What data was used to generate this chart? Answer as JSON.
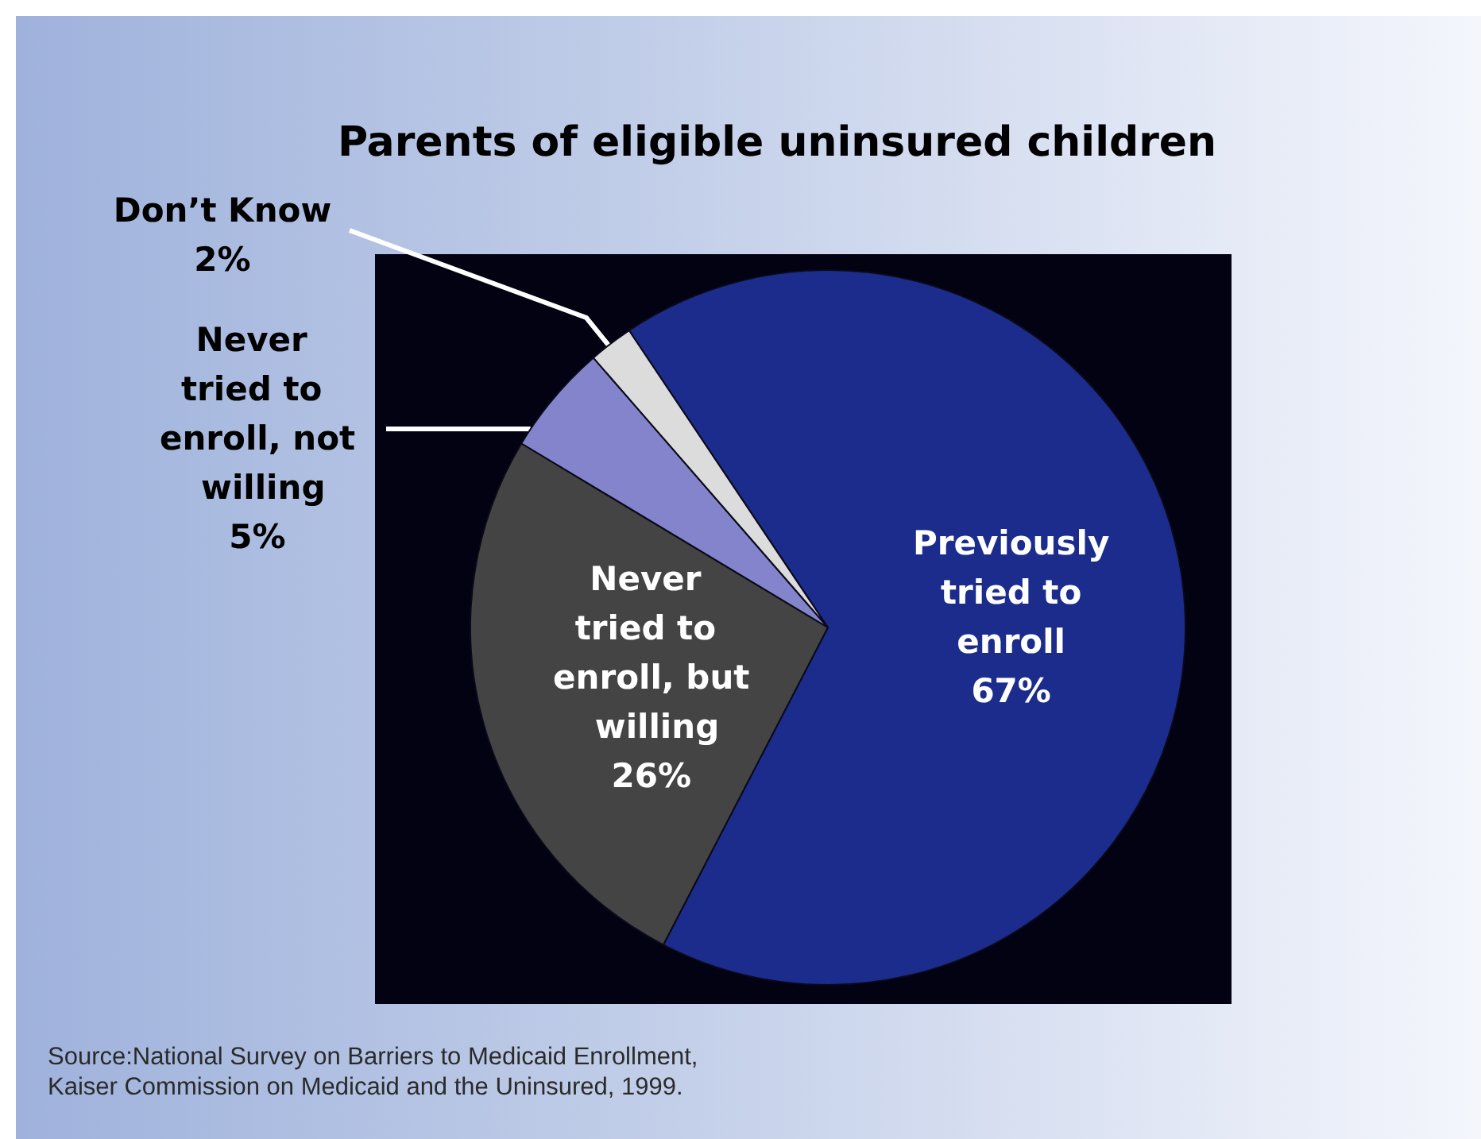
{
  "chart_data": {
    "type": "pie",
    "title": "Parents of eligible uninsured children",
    "categories": [
      "Previously tried to enroll",
      "Never tried to enroll, but willing",
      "Never tried to enroll, not willing",
      "Don’t Know"
    ],
    "values": [
      67,
      26,
      5,
      2
    ],
    "value_labels": [
      "67%",
      "26%",
      "5%",
      "2%"
    ],
    "colors": [
      "#1c2c8c",
      "#444444",
      "#8484cc",
      "#dcdcdc"
    ],
    "annotations": [
      "Source:National Survey on Barriers to Medicaid Enrollment, Kaiser Commission on Medicaid and the Uninsured, 1999."
    ]
  }
}
